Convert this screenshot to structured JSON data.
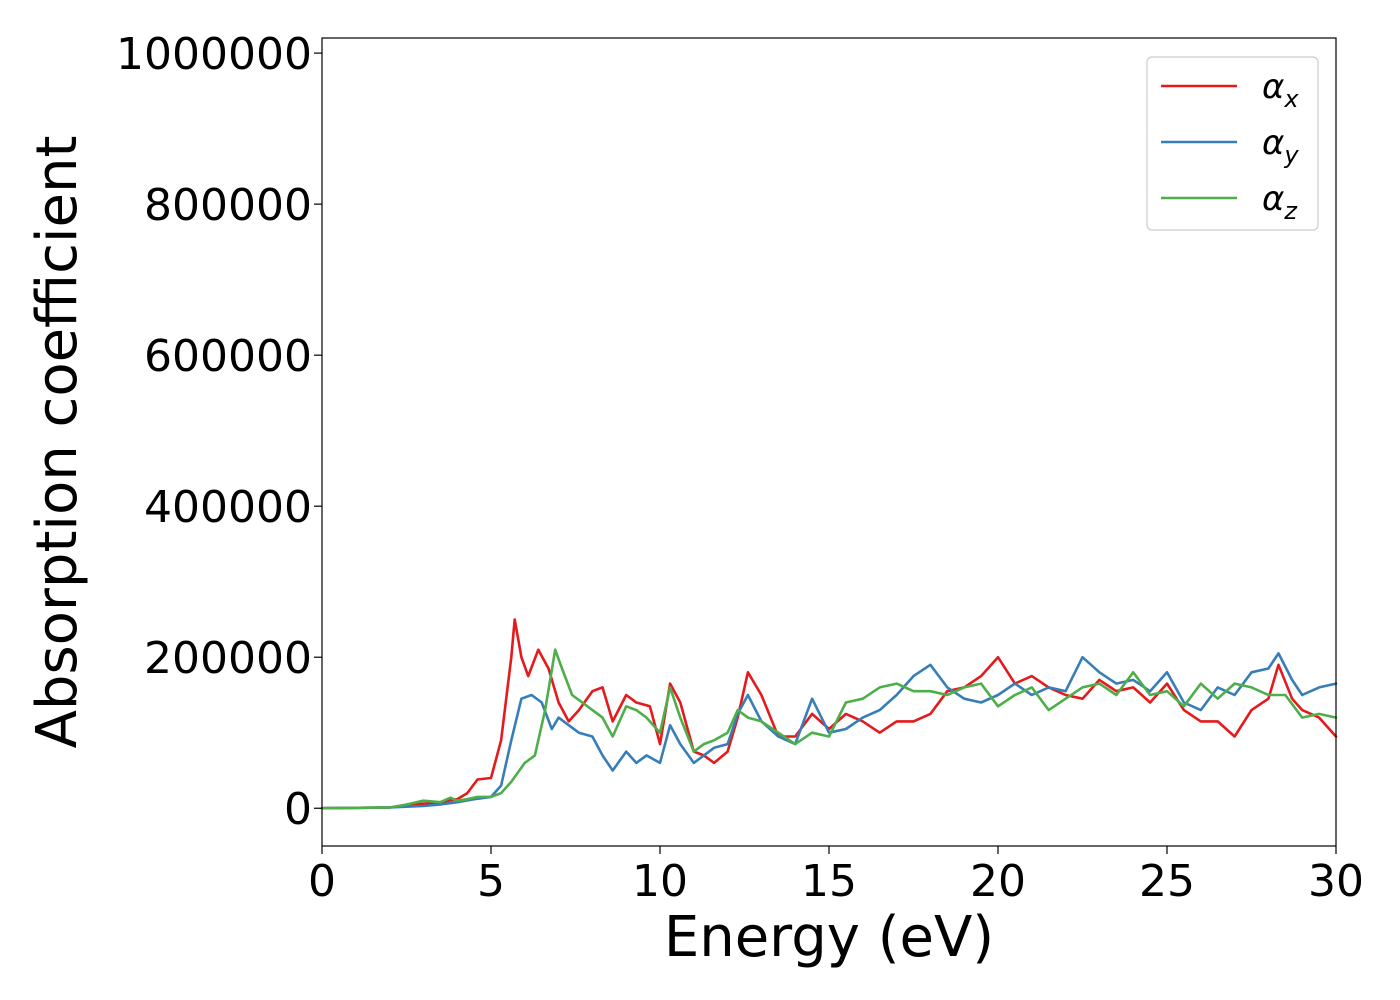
{
  "chart_data": {
    "type": "line",
    "xlabel": "Energy (eV)",
    "ylabel": "Absorption coefficient",
    "xlim": [
      0,
      30
    ],
    "ylim": [
      -50000,
      1020000
    ],
    "xticks": [
      0,
      5,
      10,
      15,
      20,
      25,
      30
    ],
    "xtick_labels": [
      "0",
      "5",
      "10",
      "15",
      "20",
      "25",
      "30"
    ],
    "yticks": [
      0,
      200000,
      400000,
      600000,
      800000,
      1000000
    ],
    "ytick_labels": [
      "0",
      "200000",
      "400000",
      "600000",
      "800000",
      "1000000"
    ],
    "grid": false,
    "legend_position": "top-right",
    "series": [
      {
        "name": "α_x",
        "legend_main": "α",
        "legend_sub": "x",
        "color": "#e41a1c",
        "x": [
          0,
          2,
          2.5,
          3,
          3.5,
          4,
          4.3,
          4.6,
          5,
          5.3,
          5.6,
          5.7,
          5.9,
          6.1,
          6.4,
          6.7,
          7,
          7.3,
          7.6,
          8,
          8.3,
          8.6,
          9,
          9.3,
          9.7,
          10,
          10.3,
          10.6,
          11,
          11.3,
          11.6,
          12,
          12.3,
          12.6,
          13,
          13.5,
          14,
          14.5,
          15,
          15.5,
          16,
          16.5,
          17,
          17.5,
          18,
          18.5,
          19,
          19.5,
          20,
          20.5,
          21,
          21.5,
          22,
          22.5,
          23,
          23.5,
          24,
          24.5,
          25,
          25.5,
          26,
          26.5,
          27,
          27.5,
          28,
          28.3,
          28.7,
          29,
          29.5,
          30
        ],
        "y": [
          0,
          1000,
          4000,
          6000,
          8000,
          12000,
          20000,
          38000,
          40000,
          90000,
          200000,
          250000,
          200000,
          175000,
          210000,
          185000,
          140000,
          115000,
          130000,
          155000,
          160000,
          115000,
          150000,
          140000,
          135000,
          85000,
          165000,
          140000,
          75000,
          70000,
          60000,
          75000,
          120000,
          180000,
          150000,
          95000,
          95000,
          125000,
          105000,
          125000,
          115000,
          100000,
          115000,
          115000,
          125000,
          155000,
          160000,
          175000,
          200000,
          165000,
          175000,
          160000,
          150000,
          145000,
          170000,
          155000,
          160000,
          140000,
          165000,
          130000,
          115000,
          115000,
          95000,
          130000,
          145000,
          190000,
          145000,
          130000,
          120000,
          95000
        ]
      },
      {
        "name": "α_y",
        "legend_main": "α",
        "legend_sub": "y",
        "color": "#377eb8",
        "x": [
          0,
          2,
          2.5,
          3,
          3.5,
          4,
          4.5,
          5,
          5.3,
          5.6,
          5.9,
          6.2,
          6.5,
          6.8,
          7,
          7.3,
          7.6,
          8,
          8.3,
          8.6,
          9,
          9.3,
          9.6,
          10,
          10.3,
          10.6,
          11,
          11.3,
          11.6,
          12,
          12.3,
          12.6,
          13,
          13.5,
          14,
          14.5,
          15,
          15.5,
          16,
          16.5,
          17,
          17.5,
          18,
          18.5,
          19,
          19.5,
          20,
          20.5,
          21,
          21.5,
          22,
          22.5,
          23,
          23.5,
          24,
          24.5,
          25,
          25.5,
          26,
          26.5,
          27,
          27.5,
          28,
          28.3,
          28.7,
          29,
          29.5,
          30
        ],
        "y": [
          0,
          1000,
          2000,
          3000,
          5000,
          8000,
          12000,
          15000,
          30000,
          90000,
          145000,
          150000,
          140000,
          105000,
          120000,
          110000,
          100000,
          95000,
          70000,
          50000,
          75000,
          60000,
          70000,
          60000,
          110000,
          85000,
          60000,
          70000,
          80000,
          85000,
          125000,
          150000,
          115000,
          95000,
          85000,
          145000,
          100000,
          105000,
          120000,
          130000,
          150000,
          175000,
          190000,
          160000,
          145000,
          140000,
          150000,
          165000,
          150000,
          160000,
          155000,
          200000,
          180000,
          165000,
          170000,
          155000,
          180000,
          140000,
          130000,
          160000,
          150000,
          180000,
          185000,
          205000,
          170000,
          150000,
          160000,
          165000
        ]
      },
      {
        "name": "α_z",
        "legend_main": "α",
        "legend_sub": "z",
        "color": "#4daf4a",
        "x": [
          0,
          2,
          2.5,
          3,
          3.5,
          3.8,
          4,
          4.3,
          4.6,
          5,
          5.3,
          5.6,
          6,
          6.3,
          6.6,
          6.9,
          7.1,
          7.4,
          7.7,
          8,
          8.3,
          8.6,
          9,
          9.3,
          9.6,
          10,
          10.3,
          10.6,
          11,
          11.3,
          11.6,
          12,
          12.3,
          12.6,
          13,
          13.5,
          14,
          14.5,
          15,
          15.5,
          16,
          16.5,
          17,
          17.5,
          18,
          18.5,
          19,
          19.5,
          20,
          20.5,
          21,
          21.5,
          22,
          22.5,
          23,
          23.5,
          24,
          24.5,
          25,
          25.5,
          26,
          26.5,
          27,
          27.5,
          28,
          28.5,
          29,
          29.5,
          30
        ],
        "y": [
          0,
          1000,
          5000,
          10000,
          8000,
          14000,
          10000,
          12000,
          15000,
          15000,
          20000,
          35000,
          60000,
          70000,
          130000,
          210000,
          185000,
          150000,
          140000,
          130000,
          120000,
          95000,
          135000,
          130000,
          120000,
          100000,
          160000,
          120000,
          75000,
          85000,
          90000,
          100000,
          130000,
          120000,
          115000,
          100000,
          85000,
          100000,
          95000,
          140000,
          145000,
          160000,
          165000,
          155000,
          155000,
          150000,
          160000,
          165000,
          135000,
          150000,
          160000,
          130000,
          145000,
          160000,
          165000,
          150000,
          180000,
          150000,
          155000,
          135000,
          165000,
          145000,
          165000,
          160000,
          150000,
          150000,
          120000,
          125000,
          120000
        ]
      }
    ]
  }
}
